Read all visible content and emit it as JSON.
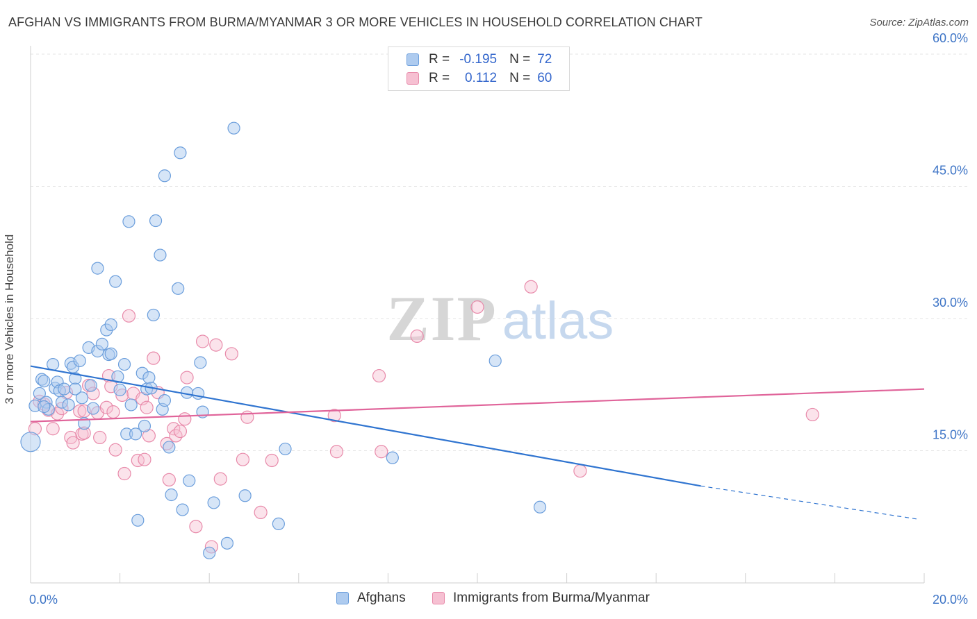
{
  "title": "AFGHAN VS IMMIGRANTS FROM BURMA/MYANMAR 3 OR MORE VEHICLES IN HOUSEHOLD CORRELATION CHART",
  "source": "Source: ZipAtlas.com",
  "watermark": {
    "zip": "ZIP",
    "atlas": "atlas"
  },
  "legend": {
    "r_label": "R =",
    "n_label": "N =",
    "rows": [
      {
        "name": "Afghans",
        "r": "-0.195",
        "n": "72"
      },
      {
        "name": "Immigrants from Burma/Myanmar",
        "r": "0.112",
        "n": "60"
      }
    ]
  },
  "colors": {
    "afghans_fill": "#aecbef",
    "afghans_stroke": "#6b9edc",
    "afghans_line": "#2f74d0",
    "burma_fill": "#f6c0d2",
    "burma_stroke": "#e88aaa",
    "burma_line": "#e0649a",
    "axis_text": "#3d74c6",
    "grid": "#e3e3e3"
  },
  "chart_data": {
    "type": "scatter",
    "xlabel": "",
    "ylabel": "3 or more Vehicles in Household",
    "xlim": [
      0,
      20
    ],
    "ylim": [
      0,
      60
    ],
    "x_tick_labels": {
      "min": "0.0%",
      "max": "20.0%"
    },
    "y_ticks": [
      {
        "value": 15,
        "label": "15.0%"
      },
      {
        "value": 30,
        "label": "30.0%"
      },
      {
        "value": 45,
        "label": "45.0%"
      },
      {
        "value": 60,
        "label": "60.0%"
      }
    ],
    "series": [
      {
        "name": "Afghans",
        "r": -0.195,
        "n": 72,
        "trend": {
          "x0": 0,
          "y0": 24.6,
          "x1": 15.0,
          "y1": 11.0,
          "dash_to_x": 19.9,
          "dash_to_y": 7.2
        },
        "points": [
          [
            0.1,
            20.1
          ],
          [
            0.2,
            21.5
          ],
          [
            0.25,
            23.1
          ],
          [
            0.3,
            22.9
          ],
          [
            0.35,
            20.5
          ],
          [
            0.4,
            19.7
          ],
          [
            0.5,
            24.8
          ],
          [
            0.55,
            22.1
          ],
          [
            0.6,
            22.8
          ],
          [
            0.65,
            21.8
          ],
          [
            0.7,
            20.5
          ],
          [
            0.75,
            22.0
          ],
          [
            0.85,
            20.2
          ],
          [
            0.9,
            24.9
          ],
          [
            0.95,
            24.5
          ],
          [
            1.0,
            23.2
          ],
          [
            1.1,
            25.2
          ],
          [
            1.15,
            21.0
          ],
          [
            1.2,
            18.1
          ],
          [
            1.3,
            26.7
          ],
          [
            1.35,
            22.4
          ],
          [
            1.4,
            19.8
          ],
          [
            1.5,
            26.3
          ],
          [
            1.6,
            27.1
          ],
          [
            1.7,
            28.7
          ],
          [
            1.75,
            25.9
          ],
          [
            1.8,
            26.0
          ],
          [
            1.8,
            29.3
          ],
          [
            1.9,
            34.2
          ],
          [
            1.5,
            35.7
          ],
          [
            1.95,
            23.4
          ],
          [
            2.0,
            21.9
          ],
          [
            2.1,
            24.8
          ],
          [
            2.15,
            16.9
          ],
          [
            2.2,
            41.0
          ],
          [
            2.25,
            20.2
          ],
          [
            2.35,
            16.9
          ],
          [
            2.4,
            7.1
          ],
          [
            2.5,
            23.8
          ],
          [
            2.55,
            17.8
          ],
          [
            2.6,
            22.0
          ],
          [
            2.65,
            23.3
          ],
          [
            2.7,
            22.1
          ],
          [
            2.75,
            30.4
          ],
          [
            2.8,
            41.1
          ],
          [
            2.9,
            37.2
          ],
          [
            2.95,
            19.7
          ],
          [
            3.0,
            20.7
          ],
          [
            3.0,
            46.2
          ],
          [
            3.1,
            15.4
          ],
          [
            3.15,
            10.0
          ],
          [
            3.3,
            33.4
          ],
          [
            3.35,
            48.8
          ],
          [
            3.4,
            8.3
          ],
          [
            3.5,
            21.6
          ],
          [
            3.55,
            11.6
          ],
          [
            3.75,
            21.5
          ],
          [
            3.8,
            25.0
          ],
          [
            3.85,
            19.4
          ],
          [
            4.0,
            3.4
          ],
          [
            4.1,
            9.1
          ],
          [
            4.4,
            4.5
          ],
          [
            4.55,
            51.6
          ],
          [
            4.8,
            9.9
          ],
          [
            5.55,
            6.7
          ],
          [
            5.7,
            15.2
          ],
          [
            8.1,
            14.2
          ],
          [
            10.4,
            25.2
          ],
          [
            11.4,
            8.6
          ],
          [
            0.0,
            16.0
          ],
          [
            1.0,
            22.0
          ],
          [
            0.3,
            20.0
          ]
        ]
      },
      {
        "name": "Immigrants from Burma/Myanmar",
        "r": 0.112,
        "n": 60,
        "trend": {
          "x0": 0,
          "y0": 18.3,
          "x1": 20.0,
          "y1": 22.0
        },
        "points": [
          [
            0.1,
            17.5
          ],
          [
            0.2,
            20.6
          ],
          [
            0.3,
            20.3
          ],
          [
            0.4,
            19.6
          ],
          [
            0.5,
            17.5
          ],
          [
            0.6,
            19.2
          ],
          [
            0.7,
            19.8
          ],
          [
            0.8,
            21.6
          ],
          [
            0.9,
            16.5
          ],
          [
            0.95,
            15.9
          ],
          [
            1.1,
            19.5
          ],
          [
            1.15,
            16.9
          ],
          [
            1.2,
            19.5
          ],
          [
            1.3,
            22.4
          ],
          [
            1.4,
            21.5
          ],
          [
            1.5,
            19.3
          ],
          [
            1.55,
            16.5
          ],
          [
            1.7,
            19.9
          ],
          [
            1.75,
            23.5
          ],
          [
            1.8,
            22.3
          ],
          [
            1.85,
            19.4
          ],
          [
            1.9,
            15.1
          ],
          [
            2.05,
            21.3
          ],
          [
            2.1,
            12.4
          ],
          [
            2.2,
            30.3
          ],
          [
            2.3,
            21.5
          ],
          [
            2.4,
            13.9
          ],
          [
            2.5,
            20.9
          ],
          [
            2.55,
            14.0
          ],
          [
            2.6,
            19.9
          ],
          [
            2.65,
            16.7
          ],
          [
            2.75,
            25.5
          ],
          [
            2.85,
            21.6
          ],
          [
            3.05,
            15.8
          ],
          [
            3.1,
            11.7
          ],
          [
            3.2,
            17.5
          ],
          [
            3.25,
            16.7
          ],
          [
            3.35,
            17.2
          ],
          [
            3.45,
            18.6
          ],
          [
            3.5,
            23.3
          ],
          [
            3.7,
            6.4
          ],
          [
            3.85,
            27.4
          ],
          [
            4.05,
            4.1
          ],
          [
            4.15,
            27.0
          ],
          [
            4.25,
            11.8
          ],
          [
            4.5,
            26.0
          ],
          [
            4.75,
            14.0
          ],
          [
            4.85,
            18.8
          ],
          [
            5.15,
            8.0
          ],
          [
            5.4,
            13.9
          ],
          [
            6.8,
            19.0
          ],
          [
            6.85,
            14.9
          ],
          [
            7.8,
            23.5
          ],
          [
            7.85,
            14.9
          ],
          [
            8.65,
            28.0
          ],
          [
            10.0,
            31.3
          ],
          [
            11.2,
            33.6
          ],
          [
            12.3,
            12.7
          ],
          [
            17.5,
            19.1
          ],
          [
            1.2,
            17.0
          ]
        ]
      }
    ]
  }
}
